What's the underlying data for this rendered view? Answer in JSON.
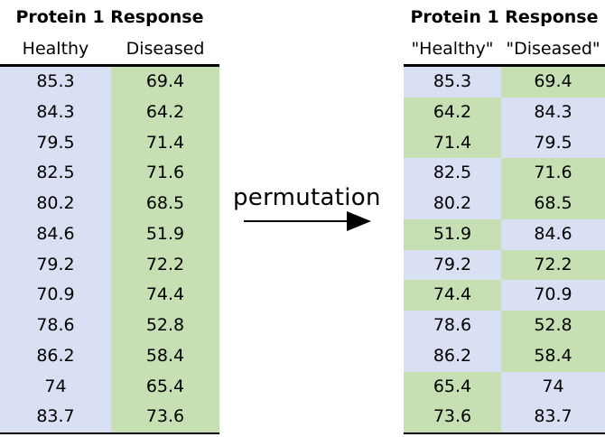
{
  "left": {
    "title": "Protein 1 Response",
    "columns": [
      "Healthy",
      "Diseased"
    ],
    "rows": [
      [
        "85.3",
        "69.4"
      ],
      [
        "84.3",
        "64.2"
      ],
      [
        "79.5",
        "71.4"
      ],
      [
        "82.5",
        "71.6"
      ],
      [
        "80.2",
        "68.5"
      ],
      [
        "84.6",
        "51.9"
      ],
      [
        "79.2",
        "72.2"
      ],
      [
        "70.9",
        "74.4"
      ],
      [
        "78.6",
        "52.8"
      ],
      [
        "86.2",
        "58.4"
      ],
      [
        "74",
        "65.4"
      ],
      [
        "83.7",
        "73.6"
      ]
    ]
  },
  "arrow": {
    "label": "permutation"
  },
  "right": {
    "title": "Protein 1 Response",
    "columns": [
      "\"Healthy\"",
      "\"Diseased\""
    ],
    "rows": [
      [
        "85.3",
        "69.4"
      ],
      [
        "64.2",
        "84.3"
      ],
      [
        "71.4",
        "79.5"
      ],
      [
        "82.5",
        "71.6"
      ],
      [
        "80.2",
        "68.5"
      ],
      [
        "51.9",
        "84.6"
      ],
      [
        "79.2",
        "72.2"
      ],
      [
        "74.4",
        "70.9"
      ],
      [
        "78.6",
        "52.8"
      ],
      [
        "86.2",
        "58.4"
      ],
      [
        "65.4",
        "74"
      ],
      [
        "73.6",
        "83.7"
      ]
    ],
    "swapped": [
      false,
      true,
      true,
      false,
      false,
      true,
      false,
      true,
      false,
      false,
      true,
      true
    ]
  },
  "colors": {
    "healthy": "#dae0f3",
    "diseased": "#c6e0b4",
    "rule": "#000000"
  }
}
